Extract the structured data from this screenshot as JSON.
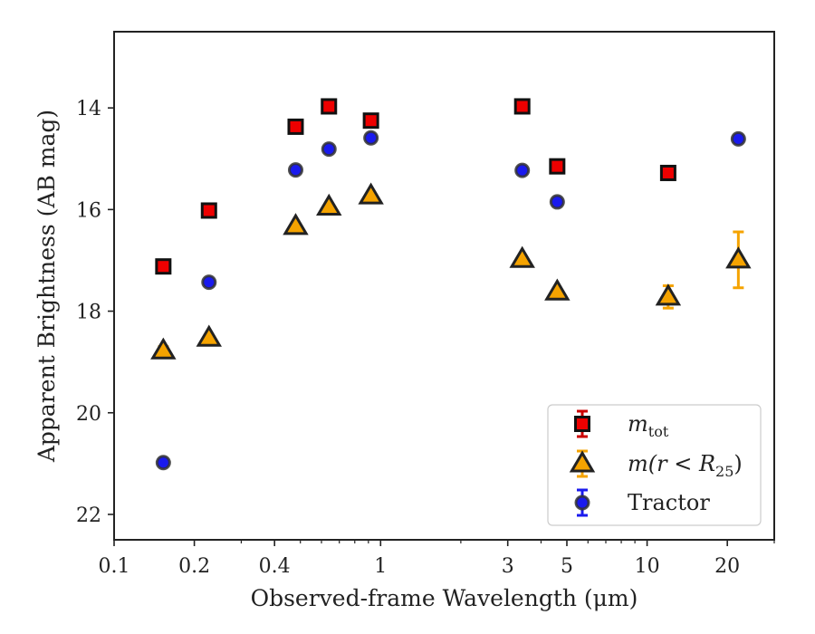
{
  "chart_data": {
    "type": "scatter",
    "title": "",
    "xlabel": "Observed-frame Wavelength (μm)",
    "ylabel": "Apparent Brightness (AB mag)",
    "xscale": "log",
    "xlim": [
      0.1,
      30
    ],
    "ylim": [
      22.5,
      12.5
    ],
    "y_inverted": true,
    "x_ticks": [
      {
        "value": 0.1,
        "label": "0.1"
      },
      {
        "value": 0.2,
        "label": "0.2"
      },
      {
        "value": 0.4,
        "label": "0.4"
      },
      {
        "value": 1,
        "label": "1"
      },
      {
        "value": 3,
        "label": "3"
      },
      {
        "value": 5,
        "label": "5"
      },
      {
        "value": 10,
        "label": "10"
      },
      {
        "value": 20,
        "label": "20"
      }
    ],
    "y_ticks": [
      {
        "value": 14,
        "label": "14"
      },
      {
        "value": 16,
        "label": "16"
      },
      {
        "value": 18,
        "label": "18"
      },
      {
        "value": 20,
        "label": "20"
      },
      {
        "value": 22,
        "label": "22"
      }
    ],
    "grid": false,
    "legend_position": "bottom-right",
    "series": [
      {
        "name": "m_tot",
        "legend_main": "m",
        "legend_sub": "tot",
        "marker": "square",
        "fill": "#ee0000",
        "edge": "#111111",
        "errcolor": "#cc0000",
        "points": [
          {
            "x": 0.153,
            "y": 17.12,
            "err": 0
          },
          {
            "x": 0.227,
            "y": 16.02,
            "err": 0
          },
          {
            "x": 0.48,
            "y": 14.37,
            "err": 0
          },
          {
            "x": 0.64,
            "y": 13.97,
            "err": 0
          },
          {
            "x": 0.92,
            "y": 14.25,
            "err": 0
          },
          {
            "x": 3.4,
            "y": 13.97,
            "err": 0
          },
          {
            "x": 4.6,
            "y": 15.15,
            "err": 0
          },
          {
            "x": 12.0,
            "y": 15.28,
            "err": 0
          },
          {
            "x": 22.0,
            "y": null,
            "err": 0
          }
        ]
      },
      {
        "name": "m(r < R25)",
        "legend_main": "m(r < R",
        "legend_sub": "25",
        "legend_tail": ")",
        "marker": "triangle",
        "fill": "#f5a300",
        "edge": "#222222",
        "errcolor": "#f5a300",
        "points": [
          {
            "x": 0.153,
            "y": 18.78,
            "err": 0.08
          },
          {
            "x": 0.227,
            "y": 18.53,
            "err": 0
          },
          {
            "x": 0.48,
            "y": 16.33,
            "err": 0
          },
          {
            "x": 0.64,
            "y": 15.95,
            "err": 0
          },
          {
            "x": 0.92,
            "y": 15.73,
            "err": 0
          },
          {
            "x": 3.4,
            "y": 16.98,
            "err": 0
          },
          {
            "x": 4.6,
            "y": 17.62,
            "err": 0
          },
          {
            "x": 12.0,
            "y": 17.72,
            "err": 0.22
          },
          {
            "x": 22.0,
            "y": 16.99,
            "err": 0.55
          }
        ]
      },
      {
        "name": "Tractor",
        "legend_main": "Tractor",
        "marker": "circle",
        "fill": "#1a1aee",
        "edge": "#333333",
        "errcolor": "#1a1aee",
        "points": [
          {
            "x": 0.153,
            "y": 20.98,
            "err": 0
          },
          {
            "x": 0.227,
            "y": 17.43,
            "err": 0
          },
          {
            "x": 0.48,
            "y": 15.22,
            "err": 0
          },
          {
            "x": 0.64,
            "y": 14.81,
            "err": 0
          },
          {
            "x": 0.92,
            "y": 14.59,
            "err": 0
          },
          {
            "x": 3.4,
            "y": 15.23,
            "err": 0
          },
          {
            "x": 4.6,
            "y": 15.85,
            "err": 0
          },
          {
            "x": 12.0,
            "y": 15.29,
            "err": 0
          },
          {
            "x": 22.0,
            "y": 14.61,
            "err": 0
          }
        ]
      }
    ]
  }
}
